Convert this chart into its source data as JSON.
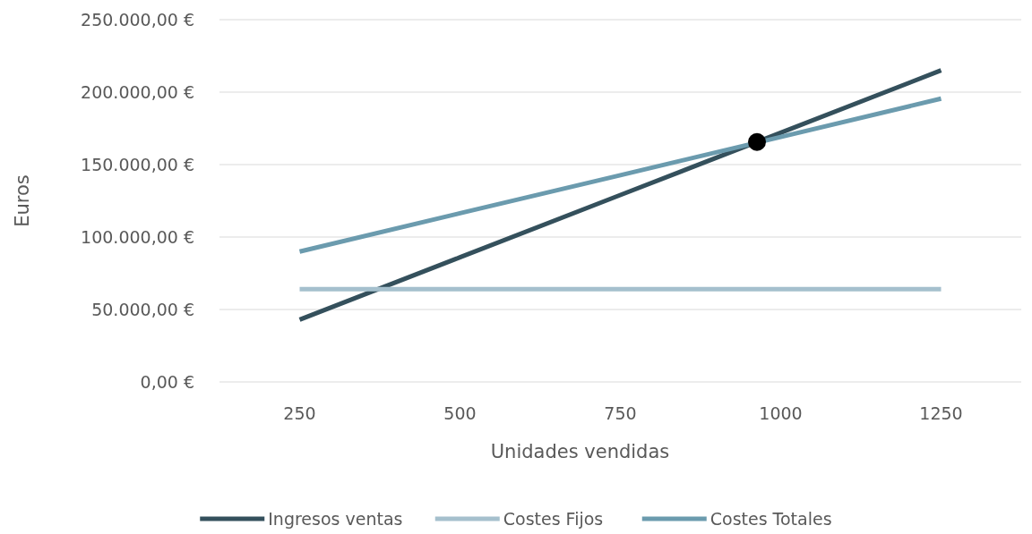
{
  "chart_data": {
    "type": "line",
    "xlabel": "Unidades vendidas",
    "ylabel": "Euros",
    "x": [
      250,
      500,
      750,
      1000,
      1250
    ],
    "xlim": [
      125,
      1375
    ],
    "xticks": [
      250,
      500,
      750,
      1000,
      1250
    ],
    "ylim": [
      0,
      250000
    ],
    "yticks": [
      {
        "value": 0,
        "label": "0,00 €"
      },
      {
        "value": 50000,
        "label": "50.000,00 €"
      },
      {
        "value": 100000,
        "label": "100.000,00 €"
      },
      {
        "value": 150000,
        "label": "150.000,00 €"
      },
      {
        "value": 200000,
        "label": "200.000,00 €"
      },
      {
        "value": 250000,
        "label": "250.000,00 €"
      }
    ],
    "grid": "y",
    "legend": "bottom",
    "series": [
      {
        "name": "Ingresos ventas",
        "color": "#34505c",
        "values": [
          43000,
          86000,
          129000,
          172000,
          215000
        ]
      },
      {
        "name": "Costes Fijos",
        "color": "#a5c0cd",
        "values": [
          64000,
          64000,
          64000,
          64000,
          64000
        ]
      },
      {
        "name": "Costes Totales",
        "color": "#6b9bae",
        "values": [
          90000,
          116400,
          142700,
          169100,
          195500
        ]
      },
      {
        "type": "scatter",
        "color": "#000000",
        "marker": "circle",
        "x": [
          963
        ],
        "values": [
          165600
        ]
      }
    ]
  }
}
